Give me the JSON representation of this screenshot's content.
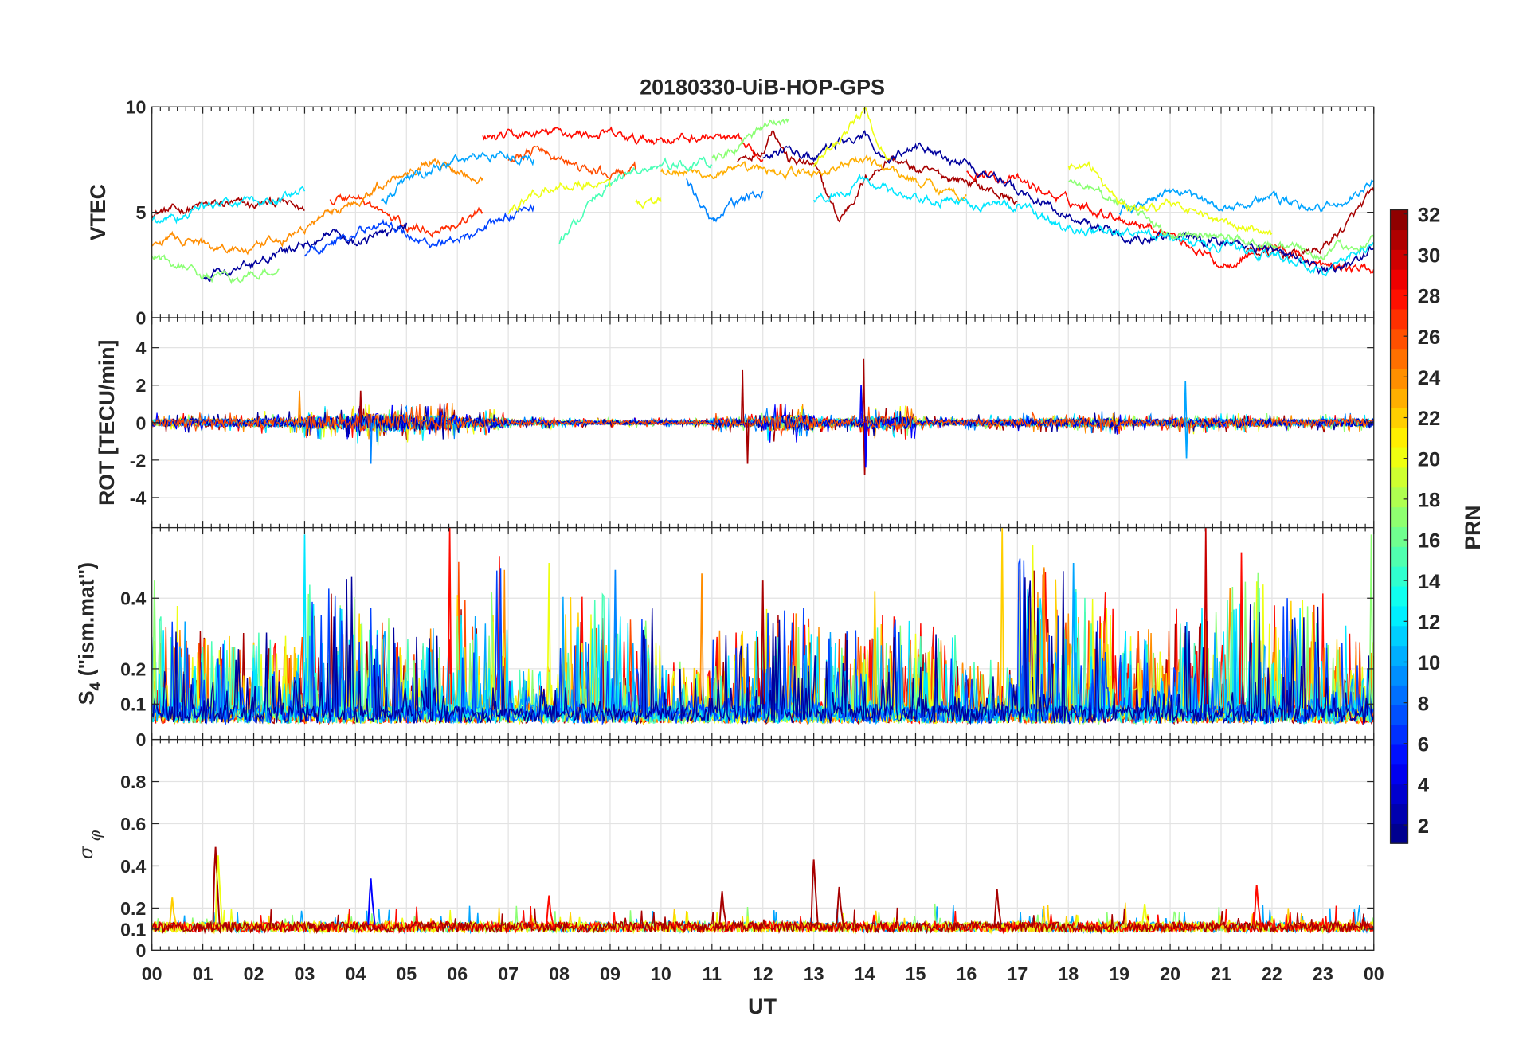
{
  "chart_data": {
    "type": "line",
    "title": "20180330-UiB-HOP-GPS",
    "xlabel": "UT",
    "x_range_hours": [
      0,
      24
    ],
    "x_tick_labels": [
      "00",
      "01",
      "02",
      "03",
      "04",
      "05",
      "06",
      "07",
      "08",
      "09",
      "10",
      "11",
      "12",
      "13",
      "14",
      "15",
      "16",
      "17",
      "18",
      "19",
      "20",
      "21",
      "22",
      "23",
      "00"
    ],
    "grid": true,
    "colorbar": {
      "label": "PRN",
      "colormap": "jet",
      "clim": [
        1.1,
        32.2
      ],
      "levels": 32,
      "tick_labels": [
        "2",
        "4",
        "6",
        "8",
        "10",
        "12",
        "14",
        "16",
        "18",
        "20",
        "22",
        "24",
        "26",
        "28",
        "30",
        "32"
      ],
      "placement": "right"
    },
    "panels": [
      {
        "id": "vtec",
        "ylabel": "VTEC",
        "ylim": [
          0,
          10
        ],
        "y_ticks": [
          0,
          5,
          10
        ],
        "y_tick_labels": [
          "0",
          "5",
          "10"
        ],
        "jitter": 0.15,
        "tracks": [
          {
            "prn": 31,
            "t": [
              0,
              0.5,
              1,
              1.5,
              2,
              2.5,
              3
            ],
            "v": [
              5,
              5.1,
              5.3,
              5.4,
              5.3,
              5.5,
              5.1
            ]
          },
          {
            "prn": 31,
            "t": [
              11.5,
              12,
              12.2,
              12.5,
              13,
              13.5,
              14,
              14.5,
              15,
              16,
              17
            ],
            "v": [
              7.5,
              8,
              9.1,
              7.5,
              7.2,
              4.6,
              6.5,
              7.6,
              7,
              6.5,
              5.5
            ]
          },
          {
            "prn": 31,
            "t": [
              21.5,
              22,
              22.5,
              23,
              23.5,
              24
            ],
            "v": [
              3.2,
              3,
              3,
              3.3,
              4.5,
              6
            ]
          },
          {
            "prn": 28,
            "t": [
              6.5,
              7,
              7.5,
              8,
              8.5,
              9,
              9.5,
              10,
              10.5,
              11,
              11.5,
              12
            ],
            "v": [
              8.5,
              8.6,
              8.7,
              8.8,
              8.7,
              8.7,
              8.4,
              8.5,
              8.5,
              8.6,
              8.3,
              7.5
            ]
          },
          {
            "prn": 28,
            "t": [
              16,
              17,
              18,
              19,
              20,
              20.5,
              21,
              22,
              23,
              24
            ],
            "v": [
              7,
              6.5,
              5.5,
              4.8,
              4,
              3.3,
              2.5,
              3.5,
              2.4,
              2.3
            ]
          },
          {
            "prn": 27,
            "t": [
              3.5,
              4,
              4.5,
              5,
              5.5,
              6,
              6.5
            ],
            "v": [
              5.5,
              5.8,
              5,
              4.3,
              4.2,
              4.5,
              5
            ]
          },
          {
            "prn": 26,
            "t": [
              7,
              7.5,
              8,
              8.5,
              9,
              9.5
            ],
            "v": [
              7.5,
              8,
              7.5,
              7,
              6.8,
              7
            ]
          },
          {
            "prn": 24,
            "t": [
              0,
              0.5,
              1,
              1.5,
              2,
              2.5,
              3,
              3.5,
              4,
              4.5,
              5,
              5.5,
              6,
              6.5
            ],
            "v": [
              3.5,
              3.8,
              3.5,
              3.3,
              3.2,
              3.6,
              4.2,
              5,
              5.5,
              6.3,
              7,
              7.5,
              7,
              6.6
            ]
          },
          {
            "prn": 23,
            "t": [
              10,
              11,
              12,
              13,
              14,
              15,
              16
            ],
            "v": [
              7,
              6.8,
              7,
              6.8,
              7.5,
              6.5,
              5.8
            ]
          },
          {
            "prn": 2,
            "t": [
              1,
              1.5,
              2,
              2.5,
              3,
              3.5,
              4,
              4.5,
              5
            ],
            "v": [
              2,
              2.2,
              2.5,
              3,
              3.5,
              4,
              3.5,
              4,
              4.5
            ]
          },
          {
            "prn": 2,
            "t": [
              12,
              12.5,
              13,
              13.5,
              14,
              14.5,
              15,
              15.5,
              16,
              16.5,
              17,
              17.5,
              18,
              19,
              20,
              21,
              22,
              23,
              23.5,
              24
            ],
            "v": [
              7.5,
              8,
              7.5,
              8.3,
              8.5,
              7.5,
              8.2,
              7.8,
              7.3,
              6.8,
              6,
              5.5,
              4.8,
              4,
              3.8,
              3.6,
              3.3,
              2.2,
              2.5,
              3.3
            ]
          },
          {
            "prn": 7,
            "t": [
              3,
              3.5,
              4,
              4.5,
              5,
              5.5,
              6,
              6.5,
              7,
              7.5
            ],
            "v": [
              3,
              3.5,
              4,
              4.5,
              4,
              3.5,
              3.8,
              4.2,
              4.8,
              5.3
            ]
          },
          {
            "prn": 10,
            "t": [
              4.5,
              5,
              5.5,
              6,
              6.5,
              7,
              7.5
            ],
            "v": [
              5.5,
              6.5,
              7,
              7.5,
              7.7,
              7.8,
              7.5
            ]
          },
          {
            "prn": 10,
            "t": [
              19,
              19.5,
              20,
              20.5,
              21,
              21.5,
              22,
              22.5,
              23,
              23.5,
              24
            ],
            "v": [
              5,
              5.5,
              6,
              5.6,
              5.2,
              5.5,
              5.7,
              5.3,
              5.2,
              5.5,
              6.5
            ]
          },
          {
            "prn": 12,
            "t": [
              0,
              0.5,
              1,
              1.5,
              2,
              2.5,
              3
            ],
            "v": [
              4.6,
              4.8,
              5.3,
              5.4,
              5.5,
              5.6,
              6
            ]
          },
          {
            "prn": 12,
            "t": [
              13,
              13.5,
              14,
              14.5,
              15,
              16,
              17,
              18,
              19,
              20,
              21,
              22,
              23,
              24
            ],
            "v": [
              5.5,
              6,
              6.5,
              6,
              5.5,
              5.5,
              5.3,
              4.2,
              4,
              3.8,
              3.3,
              3,
              2.3,
              3.5
            ]
          },
          {
            "prn": 15,
            "t": [
              8,
              8.5,
              9,
              9.5,
              10,
              10.5,
              11
            ],
            "v": [
              3.5,
              5,
              6.5,
              7,
              7.2,
              7.3,
              7.2
            ]
          },
          {
            "prn": 17,
            "t": [
              0,
              0.5,
              1,
              1.5,
              2,
              2.5
            ],
            "v": [
              3,
              2.5,
              2,
              1.8,
              2,
              2.3
            ]
          },
          {
            "prn": 17,
            "t": [
              11,
              11.5,
              12,
              12.5
            ],
            "v": [
              7.5,
              8,
              9,
              9.4
            ]
          },
          {
            "prn": 17,
            "t": [
              18,
              19,
              20,
              21,
              22,
              23,
              24
            ],
            "v": [
              6.5,
              5.5,
              4,
              3.8,
              3.5,
              3,
              3.8
            ]
          },
          {
            "prn": 20,
            "t": [
              7,
              7.5,
              8,
              8.5,
              9
            ],
            "v": [
              5,
              5.8,
              6.3,
              6.5,
              6.2
            ]
          },
          {
            "prn": 20,
            "t": [
              9.5,
              10
            ],
            "v": [
              5.5,
              5.5
            ]
          },
          {
            "prn": 20,
            "t": [
              13,
              13.5,
              14,
              14.5
            ],
            "v": [
              7.2,
              8.5,
              9.8,
              7.5
            ]
          },
          {
            "prn": 20,
            "t": [
              18,
              18.5,
              19,
              19.5,
              20,
              21,
              22
            ],
            "v": [
              7.2,
              7,
              5.5,
              5,
              5.5,
              4.5,
              4
            ]
          },
          {
            "prn": 9,
            "t": [
              10.5,
              11,
              11.5,
              12
            ],
            "v": [
              6.5,
              4.5,
              5.5,
              6
            ]
          }
        ]
      },
      {
        "id": "rot",
        "ylabel": "ROT [TECU/min]",
        "ylim": [
          -5.6,
          5.6
        ],
        "y_ticks": [
          -4,
          -2,
          0,
          2,
          4
        ],
        "y_tick_labels": [
          "-4",
          "-2",
          "0",
          "2",
          "4"
        ],
        "prns": [
          31,
          28,
          24,
          20,
          17,
          12,
          9,
          5,
          2,
          26
        ],
        "hourly_noise_amplitude": [
          0.3,
          0.3,
          0.35,
          0.5,
          0.7,
          0.6,
          0.4,
          0.2,
          0.15,
          0.15,
          0.15,
          0.3,
          0.6,
          0.3,
          0.5,
          0.2,
          0.25,
          0.3,
          0.35,
          0.25,
          0.35,
          0.3,
          0.25,
          0.3
        ],
        "spikes": [
          {
            "t": 4.3,
            "v": -2.2,
            "prn": 9
          },
          {
            "t": 4.1,
            "v": 1.7,
            "prn": 31
          },
          {
            "t": 2.9,
            "v": 1.7,
            "prn": 24
          },
          {
            "t": 11.6,
            "v": 2.8,
            "prn": 31
          },
          {
            "t": 11.7,
            "v": -2.2,
            "prn": 31
          },
          {
            "t": 13.98,
            "v": 3.4,
            "prn": 31
          },
          {
            "t": 14.0,
            "v": -2.8,
            "prn": 31
          },
          {
            "t": 13.93,
            "v": 2.0,
            "prn": 5
          },
          {
            "t": 14.02,
            "v": -2.4,
            "prn": 5
          },
          {
            "t": 20.3,
            "v": 2.2,
            "prn": 10
          },
          {
            "t": 20.32,
            "v": -1.9,
            "prn": 10
          }
        ]
      },
      {
        "id": "s4",
        "ylabel": "S4 (\"ism.mat\")",
        "ylim": [
          0,
          0.6
        ],
        "y_ticks": [
          0,
          0.1,
          0.2,
          0.4
        ],
        "y_tick_labels": [
          "0",
          "0.1",
          "0.2",
          "0.4"
        ],
        "prns": [
          31,
          28,
          26,
          24,
          22,
          20,
          17,
          15,
          12,
          10,
          7,
          2
        ],
        "baseline": 0.06,
        "hourly_burst_peak": [
          0.35,
          0.3,
          0.3,
          0.45,
          0.35,
          0.3,
          0.5,
          0.2,
          0.4,
          0.35,
          0.2,
          0.3,
          0.35,
          0.3,
          0.35,
          0.3,
          0.2,
          0.5,
          0.4,
          0.3,
          0.35,
          0.45,
          0.4,
          0.3
        ],
        "spikes": [
          {
            "t": 5.85,
            "v": 0.6,
            "prn": 28
          },
          {
            "t": 3.0,
            "v": 0.58,
            "prn": 12
          },
          {
            "t": 7.8,
            "v": 0.5,
            "prn": 20
          },
          {
            "t": 16.7,
            "v": 0.6,
            "prn": 22
          },
          {
            "t": 17.3,
            "v": 0.55,
            "prn": 20
          },
          {
            "t": 20.7,
            "v": 0.6,
            "prn": 30
          },
          {
            "t": 21.4,
            "v": 0.53,
            "prn": 28
          },
          {
            "t": 10.8,
            "v": 0.47,
            "prn": 24
          },
          {
            "t": 0.05,
            "v": 0.45,
            "prn": 17
          },
          {
            "t": 23.95,
            "v": 0.58,
            "prn": 17
          },
          {
            "t": 12.0,
            "v": 0.45,
            "prn": 31
          },
          {
            "t": 9.1,
            "v": 0.48,
            "prn": 9
          },
          {
            "t": 18.1,
            "v": 0.5,
            "prn": 10
          },
          {
            "t": 14.2,
            "v": 0.42,
            "prn": 22
          }
        ]
      },
      {
        "id": "sigma_phi",
        "ylabel": "σ φ",
        "ylim": [
          0,
          1
        ],
        "y_ticks": [
          0,
          0.1,
          0.2,
          0.4,
          0.6,
          0.8
        ],
        "y_tick_labels": [
          "0",
          "0.1",
          "0.2",
          "0.4",
          "0.6",
          "0.8"
        ],
        "prns": [
          10,
          17,
          22,
          20,
          28,
          31
        ],
        "baseline": 0.11,
        "spikes": [
          {
            "t": 1.25,
            "v": 0.49,
            "prn": 31
          },
          {
            "t": 1.3,
            "v": 0.45,
            "prn": 20
          },
          {
            "t": 13.0,
            "v": 0.43,
            "prn": 31
          },
          {
            "t": 4.3,
            "v": 0.34,
            "prn": 5
          },
          {
            "t": 21.7,
            "v": 0.31,
            "prn": 28
          },
          {
            "t": 11.2,
            "v": 0.28,
            "prn": 31
          },
          {
            "t": 16.6,
            "v": 0.29,
            "prn": 31
          },
          {
            "t": 0.4,
            "v": 0.25,
            "prn": 22
          },
          {
            "t": 13.5,
            "v": 0.3,
            "prn": 31
          },
          {
            "t": 19.5,
            "v": 0.22,
            "prn": 20
          },
          {
            "t": 7.8,
            "v": 0.26,
            "prn": 28
          }
        ]
      }
    ]
  }
}
